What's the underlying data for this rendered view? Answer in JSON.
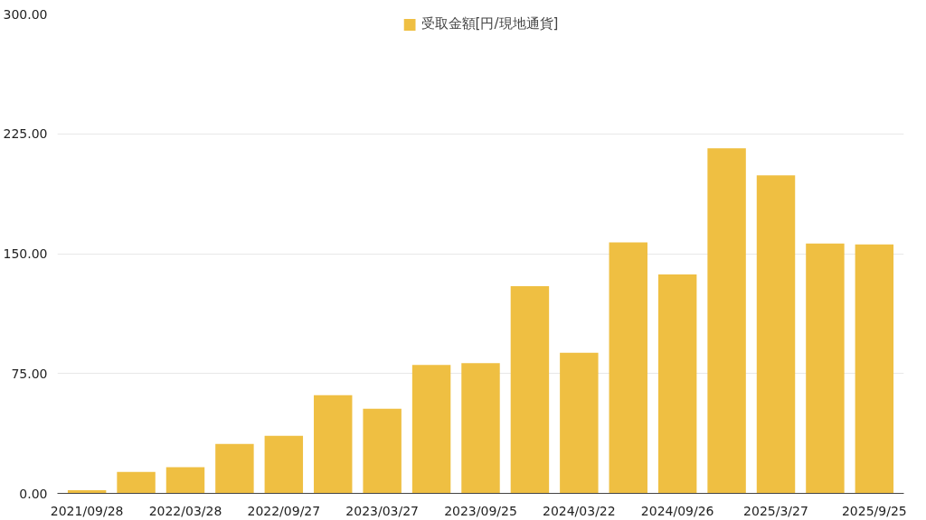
{
  "chart_data": {
    "type": "bar",
    "categories": [
      "2021/09/28",
      null,
      "2022/03/28",
      null,
      "2022/09/27",
      null,
      "2023/03/27",
      null,
      "2023/09/25",
      null,
      "2024/03/22",
      null,
      "2024/09/26",
      null,
      "2025/3/27",
      null,
      "2025/9/25"
    ],
    "series": [
      {
        "name": "受取金額[円/現地通貨]",
        "color": "#efbf42",
        "values": [
          2,
          13.4,
          16.4,
          31,
          36,
          61.5,
          53,
          80.3,
          81.5,
          129.6,
          88,
          157,
          137,
          216,
          199,
          156.4,
          155.8
        ]
      }
    ],
    "ylim": [
      0,
      300
    ],
    "yticks": [
      {
        "value": 0,
        "label": "0.00"
      },
      {
        "value": 75,
        "label": "75.00"
      },
      {
        "value": 150,
        "label": "150.00"
      },
      {
        "value": 225,
        "label": "225.00"
      },
      {
        "value": 300,
        "label": "300.00"
      }
    ],
    "grid": "y",
    "legend": "top"
  }
}
